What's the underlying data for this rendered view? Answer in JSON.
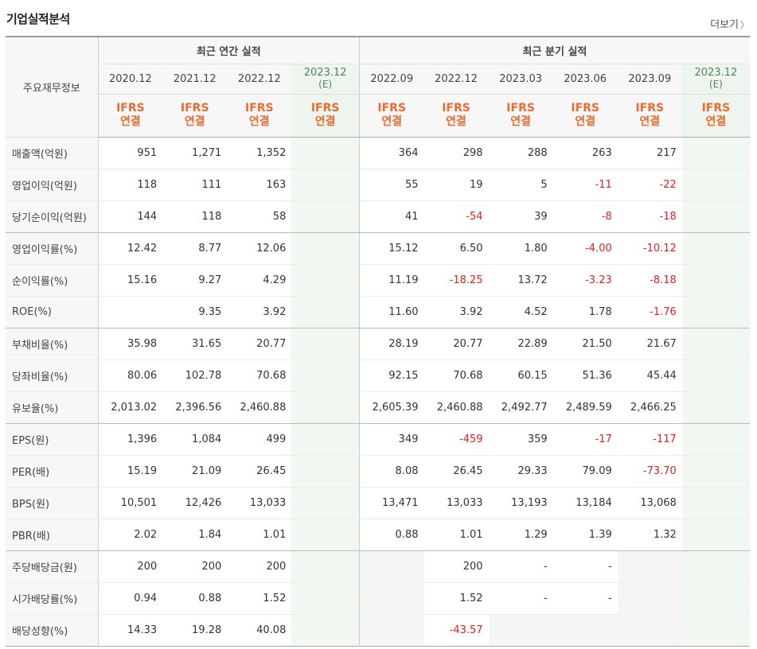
{
  "section": {
    "title": "기업실적분석",
    "more_label": "더보기"
  },
  "header": {
    "main_label": "주요재무정보",
    "annual_group": "최근 연간 실적",
    "quarter_group": "최근 분기 실적",
    "periods": [
      {
        "date": "2020.12",
        "tag": ""
      },
      {
        "date": "2021.12",
        "tag": ""
      },
      {
        "date": "2022.12",
        "tag": ""
      },
      {
        "date": "2023.12",
        "tag": "(E)"
      },
      {
        "date": "2022.09",
        "tag": ""
      },
      {
        "date": "2022.12",
        "tag": ""
      },
      {
        "date": "2023.03",
        "tag": ""
      },
      {
        "date": "2023.06",
        "tag": ""
      },
      {
        "date": "2023.09",
        "tag": ""
      },
      {
        "date": "2023.12",
        "tag": "(E)"
      }
    ],
    "ifrs_line1": "IFRS",
    "ifrs_line2": "연결"
  },
  "rows": [
    {
      "label": "매출액(억원)",
      "values": [
        "951",
        "1,271",
        "1,352",
        "",
        "364",
        "298",
        "288",
        "263",
        "217",
        ""
      ]
    },
    {
      "label": "영업이익(억원)",
      "values": [
        "118",
        "111",
        "163",
        "",
        "55",
        "19",
        "5",
        "-11",
        "-22",
        ""
      ]
    },
    {
      "label": "당기순이익(억원)",
      "values": [
        "144",
        "118",
        "58",
        "",
        "41",
        "-54",
        "39",
        "-8",
        "-18",
        ""
      ]
    },
    {
      "label": "영업이익률(%)",
      "values": [
        "12.42",
        "8.77",
        "12.06",
        "",
        "15.12",
        "6.50",
        "1.80",
        "-4.00",
        "-10.12",
        ""
      ]
    },
    {
      "label": "순이익률(%)",
      "values": [
        "15.16",
        "9.27",
        "4.29",
        "",
        "11.19",
        "-18.25",
        "13.72",
        "-3.23",
        "-8.18",
        ""
      ]
    },
    {
      "label": "ROE(%)",
      "values": [
        "",
        "9.35",
        "3.92",
        "",
        "11.60",
        "3.92",
        "4.52",
        "1.78",
        "-1.76",
        ""
      ]
    },
    {
      "label": "부채비율(%)",
      "values": [
        "35.98",
        "31.65",
        "20.77",
        "",
        "28.19",
        "20.77",
        "22.89",
        "21.50",
        "21.67",
        ""
      ]
    },
    {
      "label": "당좌비율(%)",
      "values": [
        "80.06",
        "102.78",
        "70.68",
        "",
        "92.15",
        "70.68",
        "60.15",
        "51.36",
        "45.44",
        ""
      ]
    },
    {
      "label": "유보율(%)",
      "values": [
        "2,013.02",
        "2,396.56",
        "2,460.88",
        "",
        "2,605.39",
        "2,460.88",
        "2,492.77",
        "2,489.59",
        "2,466.25",
        ""
      ]
    },
    {
      "label": "EPS(원)",
      "values": [
        "1,396",
        "1,084",
        "499",
        "",
        "349",
        "-459",
        "359",
        "-17",
        "-117",
        ""
      ]
    },
    {
      "label": "PER(배)",
      "values": [
        "15.19",
        "21.09",
        "26.45",
        "",
        "8.08",
        "26.45",
        "29.33",
        "79.09",
        "-73.70",
        ""
      ]
    },
    {
      "label": "BPS(원)",
      "values": [
        "10,501",
        "12,426",
        "13,033",
        "",
        "13,471",
        "13,033",
        "13,193",
        "13,184",
        "13,068",
        ""
      ]
    },
    {
      "label": "PBR(배)",
      "values": [
        "2.02",
        "1.84",
        "1.01",
        "",
        "0.88",
        "1.01",
        "1.29",
        "1.39",
        "1.32",
        ""
      ]
    },
    {
      "label": "주당배당금(원)",
      "values": [
        "200",
        "200",
        "200",
        "",
        "",
        "200",
        "-",
        "-",
        "",
        ""
      ]
    },
    {
      "label": "시가배당률(%)",
      "values": [
        "0.94",
        "0.88",
        "1.52",
        "",
        "",
        "1.52",
        "-",
        "-",
        "",
        ""
      ]
    },
    {
      "label": "배당성향(%)",
      "values": [
        "14.33",
        "19.28",
        "40.08",
        "",
        "",
        "-43.57",
        "",
        "",
        "",
        ""
      ]
    }
  ],
  "colors": {
    "negative": "#dd2222",
    "ifrs": "#ec6a2c",
    "estimate_bg": "#eef5ee"
  }
}
